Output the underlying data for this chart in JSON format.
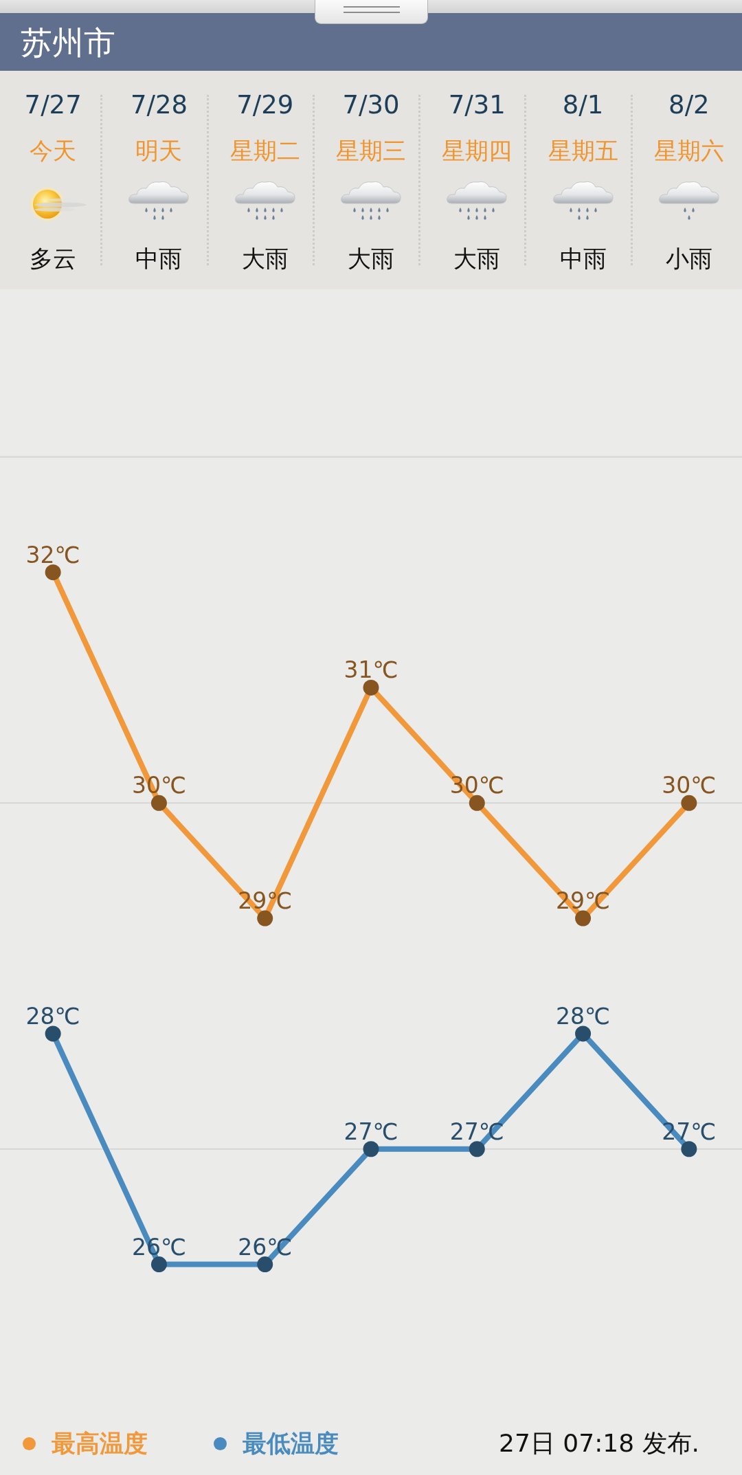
{
  "chart_data": {
    "type": "line",
    "title": "苏州市",
    "categories": [
      "7/27",
      "7/28",
      "7/29",
      "7/30",
      "7/31",
      "8/1",
      "8/2"
    ],
    "series": [
      {
        "name": "最高温度",
        "color": "#f0983a",
        "values": [
          32,
          30,
          29,
          31,
          30,
          29,
          30
        ],
        "value_labels": [
          "32℃",
          "30℃",
          "29℃",
          "31℃",
          "30℃",
          "29℃",
          "30℃"
        ]
      },
      {
        "name": "最低温度",
        "color": "#4a8bbf",
        "values": [
          28,
          26,
          26,
          27,
          27,
          28,
          27
        ],
        "value_labels": [
          "28℃",
          "26℃",
          "26℃",
          "27℃",
          "27℃",
          "28℃",
          "27℃"
        ]
      }
    ],
    "ref_lines": [
      {
        "axis": "y",
        "value": 33,
        "color": "#d6d6d6"
      },
      {
        "axis": "y",
        "value": 30,
        "color": "#d6d6d6"
      },
      {
        "axis": "y",
        "value": 27,
        "color": "#d6d6d6"
      }
    ],
    "tick_labels": "x",
    "legend": "bottom left",
    "marker": "circle",
    "line_style": "solid",
    "annotations": [
      "今天",
      "明天",
      "星期二",
      "星期三",
      "星期四",
      "星期五",
      "星期六",
      "多云",
      "中雨",
      "大雨",
      "大雨",
      "大雨",
      "中雨",
      "小雨",
      "27日 07:18 发布."
    ]
  }
}
